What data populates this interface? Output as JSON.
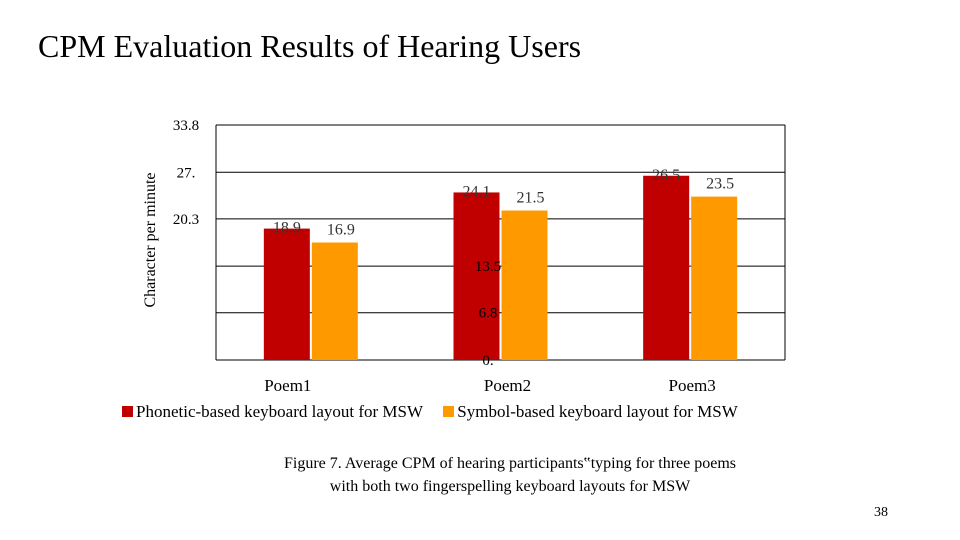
{
  "slide": {
    "title": "CPM Evaluation Results of Hearing Users",
    "caption_line1": "Figure 7. Average CPM of hearing participants‟typing for three poems",
    "caption_line2": "with both two fingerspelling keyboard layouts for MSW",
    "page_number": "38"
  },
  "chart_data": {
    "type": "bar",
    "categories": [
      "Poem1",
      "Poem2",
      "Poem3"
    ],
    "series": [
      {
        "name": "Phonetic-based keyboard layout for MSW",
        "values": [
          18.9,
          24.1,
          26.5
        ],
        "labels": [
          "18.9",
          "24.1",
          "26.5"
        ],
        "color": "#c00000"
      },
      {
        "name": "Symbol-based keyboard layout for MSW",
        "values": [
          16.9,
          21.5,
          23.5
        ],
        "labels": [
          "16.9",
          "21.5",
          "23.5"
        ],
        "color": "#ff9900"
      }
    ],
    "ylabel": "Character per minute",
    "ylim": [
      0,
      33.8
    ],
    "ytick_values": [
      0,
      6.8,
      13.5,
      20.3,
      27,
      33.8
    ],
    "ytick_labels": [
      "0.",
      "6.8",
      "13.5",
      "20.3",
      "27.",
      "33.8"
    ],
    "grid": true,
    "legend_position": "bottom"
  }
}
